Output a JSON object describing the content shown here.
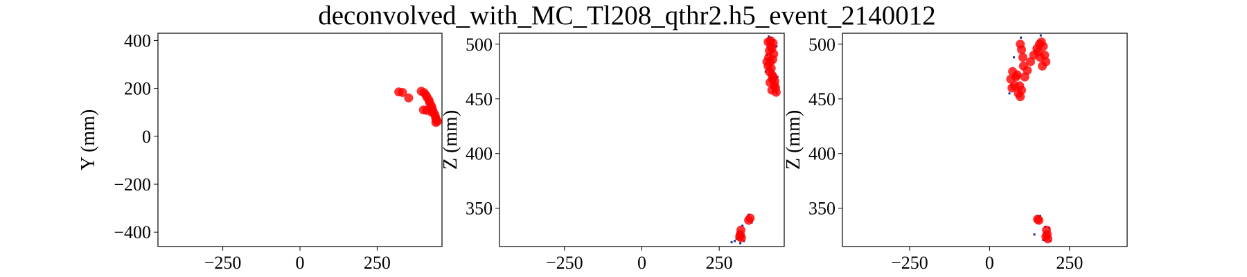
{
  "chart_data": {
    "type": "scatter",
    "title": "deconvolved_with_MC_Tl208_qthr2.h5_event_2140012",
    "colors": {
      "deconvolved": "#ff0000",
      "hits": "#1a2a8c"
    },
    "panels": [
      {
        "ylabel": "Y (mm)",
        "xlim": [
          -460,
          460
        ],
        "ylim": [
          -460,
          430
        ],
        "xticks": [
          -250,
          0,
          250
        ],
        "xtick_labels": [
          "−250",
          "0",
          "250"
        ],
        "yticks": [
          -400,
          -200,
          0,
          200,
          400
        ],
        "ytick_labels": [
          "−400",
          "−200",
          "0",
          "200",
          "400"
        ],
        "deconvolved_points": [
          [
            320,
            185
          ],
          [
            332,
            183
          ],
          [
            352,
            160
          ],
          [
            393,
            188
          ],
          [
            402,
            182
          ],
          [
            408,
            172
          ],
          [
            412,
            162
          ],
          [
            418,
            150
          ],
          [
            420,
            140
          ],
          [
            425,
            128
          ],
          [
            428,
            118
          ],
          [
            430,
            108
          ],
          [
            427,
            100
          ],
          [
            435,
            95
          ],
          [
            438,
            85
          ],
          [
            440,
            75
          ],
          [
            442,
            68
          ],
          [
            445,
            62
          ],
          [
            440,
            58
          ],
          [
            410,
            108
          ],
          [
            400,
            110
          ]
        ],
        "hit_points": []
      },
      {
        "ylabel": "Z (mm)",
        "xlim": [
          -460,
          460
        ],
        "ylim": [
          315,
          510
        ],
        "xticks": [
          -250,
          0,
          250
        ],
        "xtick_labels": [
          "−250",
          "0",
          "250"
        ],
        "yticks": [
          350,
          400,
          450,
          500
        ],
        "ytick_labels": [
          "350",
          "400",
          "450",
          "500"
        ],
        "deconvolved_points": [
          [
            408,
            502
          ],
          [
            416,
            503
          ],
          [
            424,
            501
          ],
          [
            420,
            496
          ],
          [
            412,
            494
          ],
          [
            410,
            488
          ],
          [
            415,
            484
          ],
          [
            408,
            480
          ],
          [
            412,
            475
          ],
          [
            420,
            472
          ],
          [
            425,
            470
          ],
          [
            430,
            466
          ],
          [
            432,
            460
          ],
          [
            434,
            456
          ],
          [
            428,
            462
          ],
          [
            422,
            468
          ],
          [
            418,
            478
          ],
          [
            423,
            486
          ],
          [
            426,
            491
          ],
          [
            417,
            498
          ],
          [
            404,
            484
          ],
          [
            414,
            465
          ],
          [
            420,
            458
          ],
          [
            345,
            339
          ],
          [
            350,
            341
          ],
          [
            320,
            330
          ],
          [
            318,
            326
          ],
          [
            322,
            323
          ],
          [
            316,
            324
          ]
        ],
        "hit_points": [
          [
            410,
            507
          ],
          [
            418,
            506
          ],
          [
            427,
            504
          ],
          [
            435,
            498
          ],
          [
            405,
            490
          ],
          [
            400,
            475
          ],
          [
            438,
            470
          ],
          [
            436,
            455
          ],
          [
            345,
            344
          ],
          [
            355,
            337
          ],
          [
            325,
            334
          ],
          [
            310,
            328
          ],
          [
            306,
            322
          ],
          [
            330,
            320
          ],
          [
            300,
            320
          ],
          [
            290,
            319
          ],
          [
            318,
            318
          ]
        ]
      },
      {
        "ylabel": "Z (mm)",
        "xlim": [
          -460,
          430
        ],
        "ylim": [
          315,
          510
        ],
        "xticks": [
          -250,
          0,
          250
        ],
        "xtick_labels": [
          "−250",
          "0",
          "250"
        ],
        "yticks": [
          350,
          400,
          450,
          500
        ],
        "ytick_labels": [
          "350",
          "400",
          "450",
          "500"
        ],
        "deconvolved_points": [
          [
            96,
            500
          ],
          [
            100,
            495
          ],
          [
            104,
            488
          ],
          [
            106,
            480
          ],
          [
            110,
            470
          ],
          [
            118,
            476
          ],
          [
            128,
            484
          ],
          [
            138,
            490
          ],
          [
            148,
            496
          ],
          [
            156,
            500
          ],
          [
            162,
            502
          ],
          [
            168,
            498
          ],
          [
            172,
            490
          ],
          [
            176,
            484
          ],
          [
            165,
            480
          ],
          [
            158,
            488
          ],
          [
            152,
            493
          ],
          [
            94,
            462
          ],
          [
            90,
            455
          ],
          [
            96,
            452
          ],
          [
            100,
            458
          ],
          [
            82,
            470
          ],
          [
            72,
            475
          ],
          [
            66,
            468
          ],
          [
            70,
            460
          ],
          [
            78,
            462
          ],
          [
            86,
            472
          ],
          [
            150,
            340
          ],
          [
            154,
            339
          ],
          [
            178,
            330
          ],
          [
            180,
            326
          ],
          [
            182,
            322
          ],
          [
            176,
            324
          ]
        ],
        "hit_points": [
          [
            98,
            506
          ],
          [
            160,
            508
          ],
          [
            76,
            488
          ],
          [
            62,
            455
          ],
          [
            150,
            343
          ],
          [
            158,
            343
          ],
          [
            174,
            333
          ],
          [
            186,
            332
          ],
          [
            168,
            321
          ],
          [
            140,
            326
          ],
          [
            190,
            320
          ]
        ]
      }
    ]
  }
}
